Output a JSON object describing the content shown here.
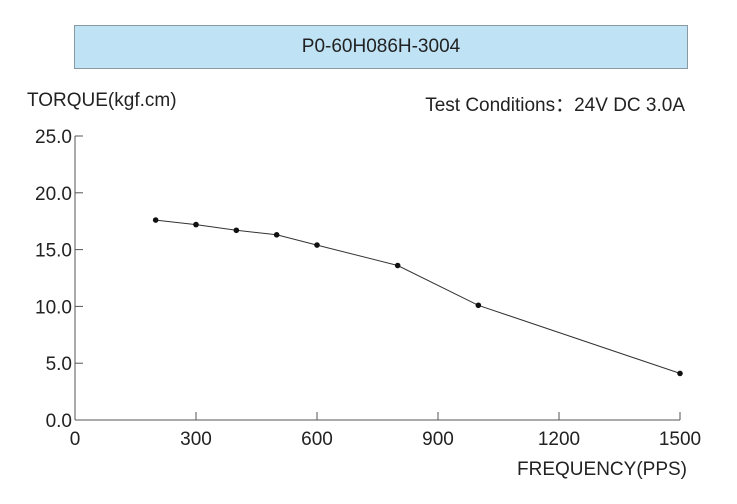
{
  "chart_data": {
    "type": "line",
    "title": "P0-60H086H-3004",
    "subtitle": "Test Conditions：24V DC  3.0A",
    "ylabel": "TORQUE(kgf.cm)",
    "xlabel": "FREQUENCY(PPS)",
    "xlim": [
      0,
      1500
    ],
    "ylim": [
      0,
      25
    ],
    "xticks": [
      "0",
      "300",
      "600",
      "900",
      "1200",
      "1500"
    ],
    "yticks": [
      "0.0",
      "5.0",
      "10.0",
      "15.0",
      "20.0",
      "25.0"
    ],
    "series": [
      {
        "x": [
          200,
          300,
          400,
          500,
          600,
          800,
          1000,
          1500
        ],
        "y": [
          17.6,
          17.2,
          16.7,
          16.3,
          15.4,
          13.6,
          10.1,
          4.1
        ]
      }
    ],
    "grid": false,
    "colors": {
      "title_bg": "#bfe3f5",
      "line": "#333333",
      "axis": "#555555"
    }
  }
}
